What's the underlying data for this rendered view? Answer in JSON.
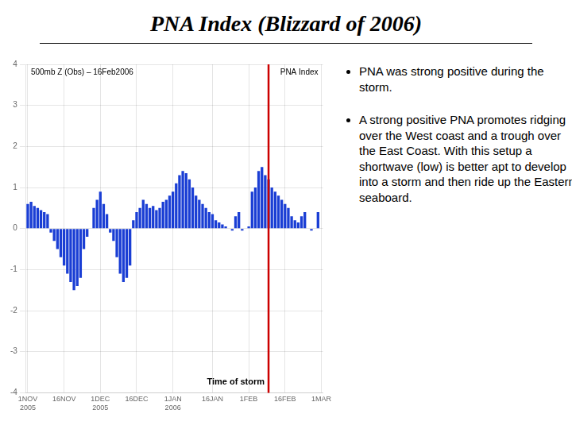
{
  "chart_data": {
    "type": "bar",
    "title": "PNA Index (Blizzard of 2006)",
    "annotations": [
      "500mb Z (Obs) – 16Feb2006",
      "PNA Index"
    ],
    "notes": [
      "PNA was strong positive during the storm.",
      "A strong positive PNA promotes ridging over the West coast and a trough over the East Coast.  With this setup a shortwave (low) is better apt to develop into a storm and then ride up the Eastern seaboard."
    ],
    "categories": [
      "1NOV\n2005",
      null,
      null,
      null,
      null,
      null,
      null,
      null,
      null,
      null,
      null,
      "16NOV",
      null,
      null,
      null,
      null,
      null,
      null,
      null,
      null,
      null,
      null,
      "1DEC\n2005",
      null,
      null,
      null,
      null,
      null,
      null,
      null,
      null,
      null,
      null,
      "16DEC",
      null,
      null,
      null,
      null,
      null,
      null,
      null,
      null,
      null,
      null,
      "1JAN\n2006",
      null,
      null,
      null,
      null,
      null,
      null,
      null,
      null,
      null,
      null,
      null,
      "16JAN",
      null,
      null,
      null,
      null,
      null,
      null,
      null,
      null,
      null,
      null,
      "1FEB",
      null,
      null,
      null,
      null,
      null,
      null,
      null,
      null,
      null,
      null,
      "16FEB",
      null,
      null,
      null,
      null,
      null,
      null,
      null,
      null,
      null,
      null,
      "1MAR"
    ],
    "values": [
      0.6,
      0.65,
      0.55,
      0.5,
      0.45,
      0.4,
      0.35,
      -0.1,
      -0.3,
      -0.5,
      -0.7,
      -0.9,
      -1.1,
      -1.3,
      -1.5,
      -1.4,
      -1.2,
      -0.5,
      -0.2,
      0.0,
      0.5,
      0.7,
      0.9,
      0.6,
      0.35,
      -0.1,
      -0.3,
      -0.7,
      -1.1,
      -1.3,
      -1.2,
      -0.9,
      0.2,
      0.4,
      0.5,
      0.7,
      0.6,
      0.5,
      0.55,
      0.45,
      0.5,
      0.65,
      0.7,
      0.8,
      0.9,
      1.1,
      1.3,
      1.4,
      1.35,
      1.2,
      1.0,
      0.8,
      0.7,
      0.6,
      0.5,
      0.4,
      0.35,
      0.2,
      0.15,
      0.1,
      0.05,
      0.0,
      -0.05,
      0.3,
      0.4,
      -0.05,
      0.0,
      0.05,
      0.9,
      1.0,
      1.4,
      1.5,
      1.3,
      1.2,
      1.0,
      0.9,
      0.8,
      0.7,
      0.6,
      0.5,
      0.3,
      0.2,
      0.15,
      0.3,
      0.4,
      0.0,
      -0.05,
      0.0,
      0.4,
      0.0
    ],
    "color": "#1a3ed4",
    "ylim": [
      -4,
      4
    ],
    "yticks": [
      -4,
      -3,
      -2,
      -1,
      0,
      1,
      2,
      3,
      4
    ],
    "grid": true,
    "vertical_line": {
      "index": 73,
      "label": "Time of storm",
      "color": "#cc0000"
    }
  }
}
